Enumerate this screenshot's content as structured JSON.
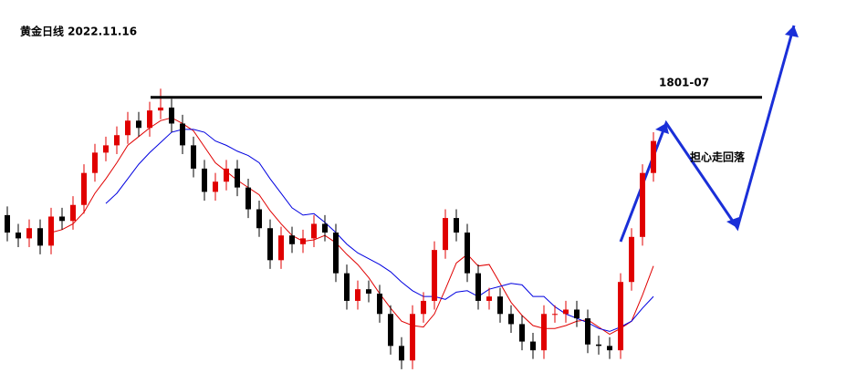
{
  "chart_data": {
    "type": "candlestick",
    "title": "黄金日线 2022.11.16",
    "ylim": [
      1607,
      1868
    ],
    "up_color": "#e00000",
    "down_color": "#000000",
    "open": [
      1720,
      1708,
      1704,
      1711,
      1699,
      1719,
      1716,
      1727,
      1749,
      1763,
      1768,
      1775,
      1785,
      1780,
      1792,
      1794,
      1783,
      1768,
      1752,
      1736,
      1743,
      1752,
      1739,
      1724,
      1711,
      1689,
      1706,
      1700,
      1704,
      1714,
      1708,
      1680,
      1661,
      1669,
      1666,
      1652,
      1630,
      1620,
      1652,
      1661,
      1696,
      1718,
      1708,
      1680,
      1661,
      1664,
      1652,
      1645,
      1633,
      1627,
      1652,
      1652,
      1655,
      1649,
      1631,
      1630,
      1627,
      1674,
      1705,
      1749
    ],
    "high": [
      1726,
      1714,
      1717,
      1717,
      1725,
      1725,
      1733,
      1755,
      1769,
      1774,
      1781,
      1791,
      1791,
      1798,
      1807,
      1800,
      1789,
      1774,
      1758,
      1749,
      1758,
      1758,
      1745,
      1730,
      1717,
      1712,
      1712,
      1710,
      1720,
      1720,
      1714,
      1686,
      1675,
      1675,
      1672,
      1658,
      1636,
      1658,
      1667,
      1702,
      1724,
      1724,
      1714,
      1686,
      1670,
      1670,
      1658,
      1651,
      1639,
      1658,
      1658,
      1661,
      1661,
      1655,
      1637,
      1636,
      1680,
      1711,
      1755,
      1777
    ],
    "low": [
      1702,
      1698,
      1698,
      1693,
      1693,
      1710,
      1710,
      1721,
      1743,
      1757,
      1762,
      1769,
      1774,
      1774,
      1786,
      1777,
      1762,
      1746,
      1730,
      1730,
      1737,
      1733,
      1718,
      1705,
      1683,
      1683,
      1694,
      1694,
      1698,
      1702,
      1674,
      1655,
      1655,
      1660,
      1646,
      1624,
      1614,
      1614,
      1646,
      1655,
      1690,
      1702,
      1674,
      1655,
      1655,
      1646,
      1639,
      1627,
      1621,
      1621,
      1646,
      1646,
      1643,
      1625,
      1624,
      1621,
      1621,
      1668,
      1699,
      1743
    ],
    "close": [
      1708,
      1704,
      1711,
      1699,
      1719,
      1716,
      1727,
      1749,
      1763,
      1768,
      1775,
      1785,
      1780,
      1792,
      1794,
      1783,
      1768,
      1752,
      1736,
      1743,
      1752,
      1739,
      1724,
      1711,
      1689,
      1706,
      1700,
      1704,
      1714,
      1708,
      1680,
      1661,
      1669,
      1666,
      1652,
      1630,
      1620,
      1652,
      1661,
      1696,
      1718,
      1708,
      1680,
      1661,
      1664,
      1652,
      1645,
      1633,
      1627,
      1652,
      1652,
      1655,
      1649,
      1631,
      1630,
      1627,
      1674,
      1705,
      1749,
      1771
    ],
    "lines": [
      {
        "color": "#e00000",
        "values": [
          null,
          null,
          null,
          null,
          1708,
          1710,
          1714,
          1722,
          1735,
          1745,
          1756,
          1768,
          1774,
          1780,
          1785,
          1787,
          1783,
          1778,
          1767,
          1756,
          1750,
          1744,
          1739,
          1734,
          1723,
          1714,
          1706,
          1702,
          1703,
          1706,
          1701,
          1693,
          1686,
          1677,
          1666,
          1656,
          1647,
          1644,
          1643,
          1652,
          1669,
          1687,
          1693,
          1685,
          1686,
          1673,
          1660,
          1651,
          1644,
          1642,
          1642,
          1644,
          1647,
          1648,
          1643,
          1638,
          1642,
          1647,
          1665,
          1685
        ]
      },
      {
        "color": "#0000e0",
        "values": [
          null,
          null,
          null,
          null,
          null,
          null,
          null,
          null,
          null,
          1728,
          1735,
          1745,
          1755,
          1763,
          1770,
          1777,
          1779,
          1779,
          1777,
          1771,
          1768,
          1764,
          1761,
          1756,
          1745,
          1735,
          1725,
          1720,
          1721,
          1715,
          1708,
          1700,
          1694,
          1690,
          1686,
          1681,
          1674,
          1668,
          1664,
          1664,
          1662,
          1667,
          1668,
          1664,
          1669,
          1671,
          1673,
          1672,
          1664,
          1664,
          1657,
          1652,
          1649,
          1646,
          1642,
          1640,
          1643,
          1647,
          1656,
          1664
        ]
      }
    ],
    "level_line": {
      "value": 1801,
      "label": "1801-07"
    },
    "annotation": "担心走回落"
  }
}
